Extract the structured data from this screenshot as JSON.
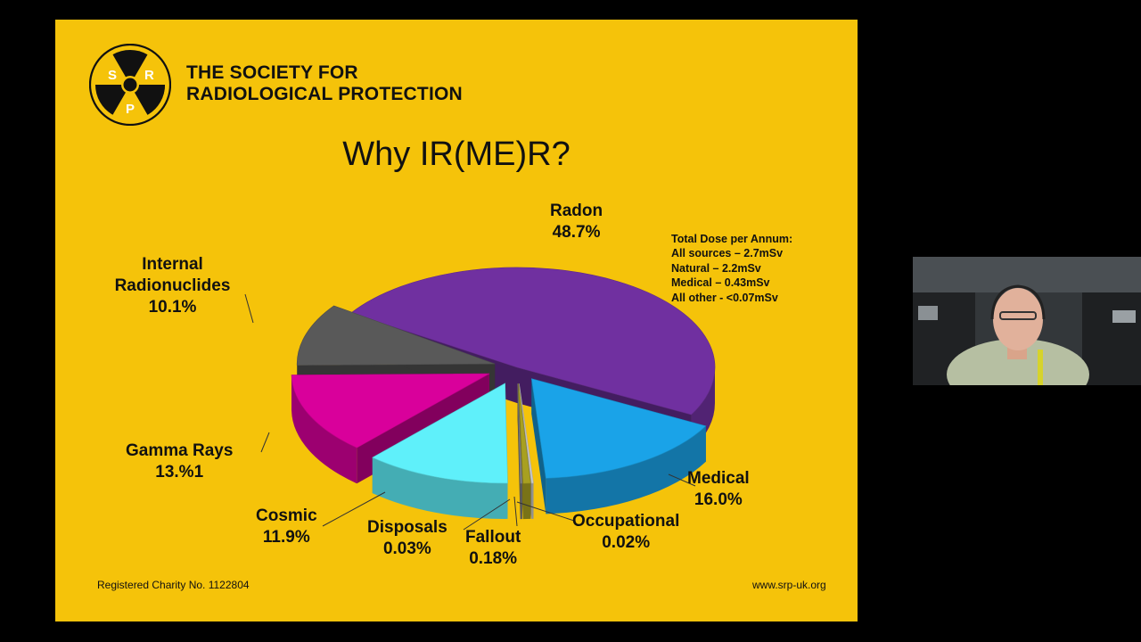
{
  "slide": {
    "org_line1": "THE SOCIETY FOR",
    "org_line2": "RADIOLOGICAL PROTECTION",
    "logo_letters": [
      "S",
      "R",
      "P"
    ],
    "title": "Why IR(ME)R?",
    "footer_left": "Registered Charity No. 1122804",
    "footer_right": "www.srp-uk.org",
    "dose_box": {
      "heading": "Total Dose per Annum:",
      "lines": [
        "All sources – 2.7mSv",
        "Natural – 2.2mSv",
        "Medical – 0.43mSv",
        "All other - <0.07mSv"
      ]
    },
    "colors": {
      "background": "#f5c30a"
    }
  },
  "chart_data": {
    "type": "pie",
    "title": "",
    "slices": [
      {
        "name": "Radon",
        "label": "48.7%",
        "value": 48.7,
        "color": "#7030a0"
      },
      {
        "name": "Medical",
        "label": "16.0%",
        "value": 16.0,
        "color": "#1aa3e8"
      },
      {
        "name": "Occupational",
        "label": "0.02%",
        "value": 0.02,
        "color": "#c9c9c9"
      },
      {
        "name": "Fallout",
        "label": "0.18%",
        "value": 0.18,
        "color": "#a8a020"
      },
      {
        "name": "Disposals",
        "label": "0.03%",
        "value": 0.03,
        "color": "#7f7f7f"
      },
      {
        "name": "Cosmic",
        "label": "11.9%",
        "value": 11.9,
        "color": "#5ff0fa"
      },
      {
        "name": "Gamma Rays",
        "label": "13.%1",
        "value": 13.1,
        "color": "#d9009b"
      },
      {
        "name": "Internal Radionuclides",
        "label": "10.1%",
        "value": 10.1,
        "color": "#595959"
      }
    ],
    "legend": "none",
    "data_labels": "outside"
  }
}
